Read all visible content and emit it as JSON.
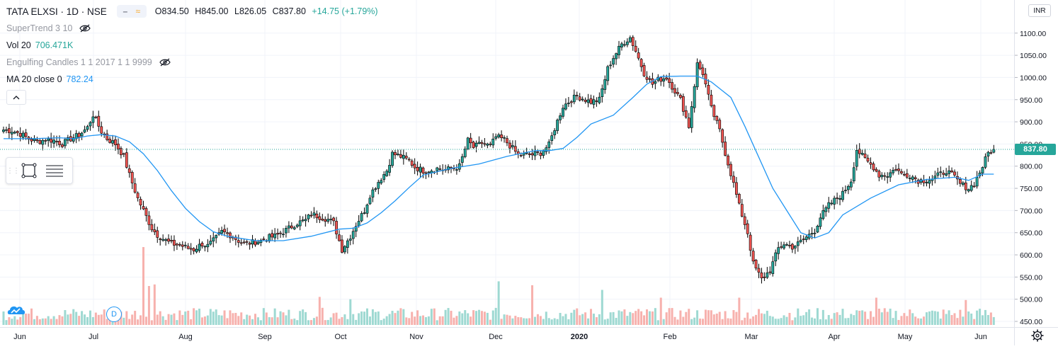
{
  "header": {
    "symbol": "TATA ELXSI · 1D · NSE",
    "open": "O834.50",
    "high": "H845.00",
    "low": "L826.05",
    "close": "C837.80",
    "change": "+14.75 (+1.79%)"
  },
  "indicators": {
    "supertrend": {
      "label": "SuperTrend 3 10",
      "hidden_icon": "eye-crossed-icon"
    },
    "volume": {
      "label": "Vol 20",
      "value": "706.471K"
    },
    "engulfing": {
      "label": "Engulfing Candles 1 1 2017 1 1 9999",
      "hidden_icon": "eye-crossed-icon"
    },
    "ma": {
      "label": "MA 20 close 0",
      "value": "782.24"
    }
  },
  "collapse_icon": "chevron-up-icon",
  "currency": "INR",
  "last_price": "837.80",
  "d_badge": "D",
  "colors": {
    "up": "#26a69a",
    "down": "#ef5350",
    "ma": "#2196f3",
    "vol_up": "#9ed9d2",
    "vol_down": "#f7b1ad"
  },
  "chart_data": {
    "type": "candlestick",
    "title": "TATA ELXSI · 1D · NSE",
    "y_ticks": [
      "1100.00",
      "1050.00",
      "1000.00",
      "950.00",
      "900.00",
      "850.00",
      "800.00",
      "750.00",
      "700.00",
      "650.00",
      "600.00",
      "550.00",
      "500.00",
      "450.00"
    ],
    "x_ticks": [
      "Jun",
      "Jul",
      "Aug",
      "Sep",
      "Oct",
      "Nov",
      "Dec",
      "2020",
      "Feb",
      "Mar",
      "Apr",
      "May",
      "Jun"
    ],
    "x_ticks_bold": [
      "2020"
    ],
    "ylim": [
      450,
      1110
    ],
    "grid": true,
    "close_path": [
      [
        0,
        882
      ],
      [
        3,
        880
      ],
      [
        6,
        873
      ],
      [
        9,
        862
      ],
      [
        12,
        855
      ],
      [
        15,
        860
      ],
      [
        18,
        858
      ],
      [
        21,
        850
      ],
      [
        24,
        862
      ],
      [
        27,
        870
      ],
      [
        30,
        887
      ],
      [
        32,
        916
      ],
      [
        35,
        878
      ],
      [
        37,
        862
      ],
      [
        40,
        850
      ],
      [
        43,
        822
      ],
      [
        45,
        780
      ],
      [
        48,
        727
      ],
      [
        50,
        700
      ],
      [
        53,
        660
      ],
      [
        55,
        645
      ],
      [
        58,
        632
      ],
      [
        60,
        625
      ],
      [
        63,
        622
      ],
      [
        66,
        615
      ],
      [
        68,
        612
      ],
      [
        71,
        625
      ],
      [
        73,
        620
      ],
      [
        76,
        638
      ],
      [
        78,
        652
      ],
      [
        81,
        645
      ],
      [
        84,
        632
      ],
      [
        86,
        625
      ],
      [
        89,
        628
      ],
      [
        92,
        632
      ],
      [
        94,
        638
      ],
      [
        97,
        642
      ],
      [
        100,
        652
      ],
      [
        102,
        660
      ],
      [
        105,
        672
      ],
      [
        108,
        678
      ],
      [
        110,
        692
      ],
      [
        113,
        686
      ],
      [
        116,
        680
      ],
      [
        118,
        672
      ],
      [
        121,
        612
      ],
      [
        124,
        642
      ],
      [
        126,
        668
      ],
      [
        129,
        700
      ],
      [
        131,
        735
      ],
      [
        134,
        765
      ],
      [
        137,
        790
      ],
      [
        139,
        828
      ],
      [
        142,
        822
      ],
      [
        145,
        812
      ],
      [
        147,
        798
      ],
      [
        150,
        790
      ],
      [
        153,
        792
      ],
      [
        155,
        795
      ],
      [
        158,
        792
      ],
      [
        161,
        795
      ],
      [
        163,
        800
      ],
      [
        166,
        858
      ],
      [
        168,
        842
      ],
      [
        171,
        852
      ],
      [
        174,
        845
      ],
      [
        176,
        866
      ],
      [
        179,
        860
      ],
      [
        182,
        840
      ],
      [
        184,
        825
      ],
      [
        187,
        826
      ],
      [
        189,
        826
      ],
      [
        192,
        830
      ],
      [
        195,
        848
      ],
      [
        197,
        885
      ],
      [
        200,
        935
      ],
      [
        203,
        950
      ],
      [
        205,
        958
      ],
      [
        208,
        950
      ],
      [
        210,
        945
      ],
      [
        213,
        950
      ],
      [
        216,
        1020
      ],
      [
        218,
        1045
      ],
      [
        221,
        1075
      ],
      [
        224,
        1090
      ],
      [
        226,
        1060
      ],
      [
        229,
        1010
      ],
      [
        232,
        985
      ],
      [
        234,
        995
      ],
      [
        237,
        1000
      ],
      [
        240,
        970
      ],
      [
        242,
        950
      ],
      [
        245,
        890
      ],
      [
        248,
        1030
      ],
      [
        250,
        1010
      ],
      [
        253,
        930
      ],
      [
        256,
        880
      ],
      [
        258,
        830
      ],
      [
        261,
        760
      ],
      [
        263,
        710
      ],
      [
        266,
        650
      ],
      [
        268,
        580
      ],
      [
        271,
        545
      ],
      [
        274,
        565
      ],
      [
        277,
        615
      ],
      [
        279,
        625
      ],
      [
        282,
        618
      ],
      [
        284,
        625
      ],
      [
        287,
        640
      ],
      [
        290,
        655
      ],
      [
        292,
        685
      ],
      [
        295,
        712
      ],
      [
        298,
        728
      ],
      [
        300,
        738
      ],
      [
        303,
        768
      ],
      [
        305,
        838
      ],
      [
        308,
        815
      ],
      [
        311,
        798
      ],
      [
        313,
        780
      ],
      [
        316,
        780
      ],
      [
        319,
        795
      ],
      [
        321,
        782
      ],
      [
        324,
        780
      ],
      [
        327,
        768
      ],
      [
        329,
        768
      ],
      [
        332,
        772
      ],
      [
        335,
        782
      ],
      [
        337,
        790
      ],
      [
        340,
        775
      ],
      [
        342,
        760
      ],
      [
        345,
        750
      ],
      [
        347,
        760
      ],
      [
        350,
        800
      ],
      [
        352,
        830
      ],
      [
        354,
        838
      ]
    ],
    "ma_path": [
      [
        0,
        862
      ],
      [
        10,
        862
      ],
      [
        20,
        864
      ],
      [
        25,
        862
      ],
      [
        30,
        868
      ],
      [
        35,
        871
      ],
      [
        40,
        868
      ],
      [
        45,
        855
      ],
      [
        50,
        828
      ],
      [
        55,
        790
      ],
      [
        60,
        745
      ],
      [
        65,
        705
      ],
      [
        70,
        675
      ],
      [
        75,
        652
      ],
      [
        80,
        642
      ],
      [
        90,
        632
      ],
      [
        100,
        632
      ],
      [
        110,
        642
      ],
      [
        120,
        658
      ],
      [
        125,
        660
      ],
      [
        130,
        672
      ],
      [
        135,
        695
      ],
      [
        140,
        722
      ],
      [
        145,
        752
      ],
      [
        150,
        780
      ],
      [
        160,
        795
      ],
      [
        170,
        805
      ],
      [
        180,
        822
      ],
      [
        190,
        835
      ],
      [
        195,
        835
      ],
      [
        200,
        840
      ],
      [
        205,
        865
      ],
      [
        210,
        895
      ],
      [
        218,
        915
      ],
      [
        225,
        955
      ],
      [
        230,
        985
      ],
      [
        235,
        1002
      ],
      [
        242,
        1003
      ],
      [
        248,
        1003
      ],
      [
        253,
        990
      ],
      [
        260,
        955
      ],
      [
        265,
        890
      ],
      [
        270,
        820
      ],
      [
        275,
        750
      ],
      [
        280,
        700
      ],
      [
        285,
        650
      ],
      [
        290,
        638
      ],
      [
        295,
        650
      ],
      [
        300,
        690
      ],
      [
        310,
        728
      ],
      [
        320,
        758
      ],
      [
        330,
        770
      ],
      [
        340,
        775
      ],
      [
        345,
        768
      ],
      [
        350,
        782
      ],
      [
        354,
        782
      ]
    ],
    "volume_spikes": [
      {
        "x": 50,
        "v": 10.0
      },
      {
        "x": 52,
        "v": 5
      },
      {
        "x": 54,
        "v": 5.2
      },
      {
        "x": 113,
        "v": 3.6
      },
      {
        "x": 124,
        "v": 3.3
      },
      {
        "x": 177,
        "v": 5.6
      },
      {
        "x": 189,
        "v": 5.1
      },
      {
        "x": 214,
        "v": 4.5
      },
      {
        "x": 235,
        "v": 3.5
      },
      {
        "x": 263,
        "v": 3.5
      },
      {
        "x": 312,
        "v": 3.5
      },
      {
        "x": 344,
        "v": 3.2
      }
    ]
  }
}
